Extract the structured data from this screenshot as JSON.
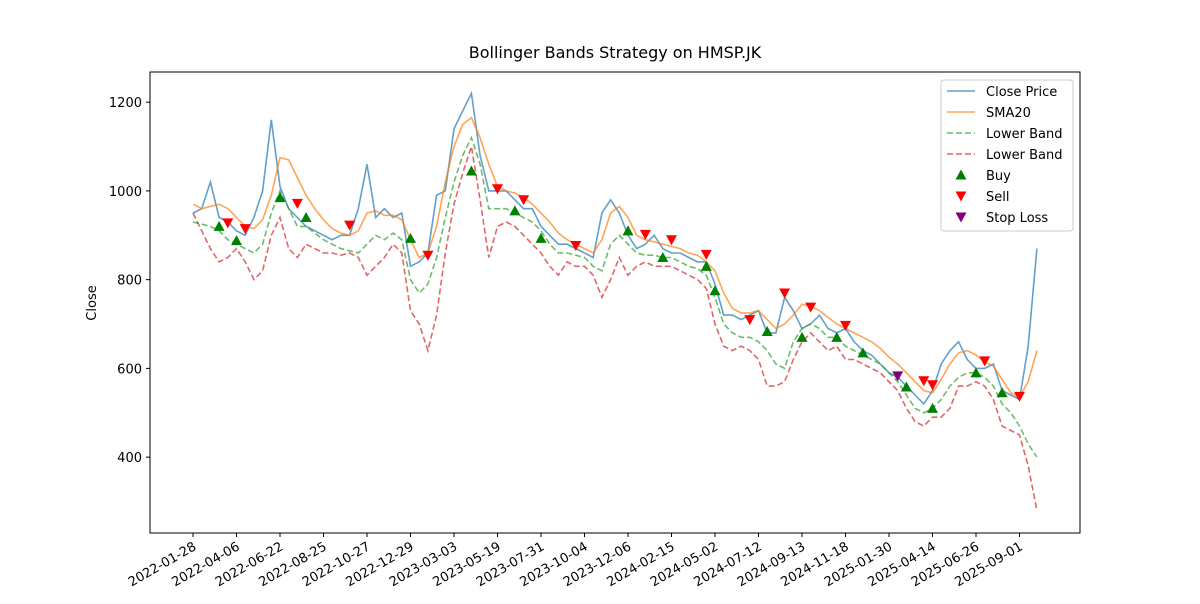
{
  "chart_data": {
    "type": "line",
    "title": "Bollinger Bands Strategy on HMSP.JK",
    "y_label": "Close",
    "categories": [
      "2022-01-28",
      null,
      null,
      null,
      null,
      "2022-04-06",
      null,
      null,
      null,
      null,
      "2022-06-22",
      null,
      null,
      null,
      null,
      "2022-08-25",
      null,
      null,
      null,
      null,
      "2022-10-27",
      null,
      null,
      null,
      null,
      "2022-12-29",
      null,
      null,
      null,
      null,
      "2023-03-03",
      null,
      null,
      null,
      null,
      "2023-05-19",
      null,
      null,
      null,
      null,
      "2023-07-31",
      null,
      null,
      null,
      null,
      "2023-10-04",
      null,
      null,
      null,
      null,
      "2023-12-06",
      null,
      null,
      null,
      null,
      "2024-02-15",
      null,
      null,
      null,
      null,
      "2024-05-02",
      null,
      null,
      null,
      null,
      "2024-07-12",
      null,
      null,
      null,
      null,
      "2024-09-13",
      null,
      null,
      null,
      null,
      "2024-11-18",
      null,
      null,
      null,
      null,
      "2025-01-30",
      null,
      null,
      null,
      null,
      "2025-04-14",
      null,
      null,
      null,
      null,
      "2025-06-26",
      null,
      null,
      null,
      null,
      "2025-09-01",
      null,
      null
    ],
    "ylim": [
      229,
      1268
    ],
    "yticks": [
      400,
      600,
      800,
      1000,
      1200
    ],
    "legend_position": "upper right",
    "series": [
      {
        "name": "Close Price",
        "color": "#1f77b4",
        "kind": "line",
        "values": [
          950,
          960,
          1020,
          940,
          930,
          910,
          900,
          940,
          1000,
          1160,
          1010,
          960,
          940,
          920,
          910,
          900,
          890,
          900,
          900,
          960,
          1060,
          940,
          960,
          940,
          950,
          830,
          840,
          860,
          990,
          1000,
          1140,
          1180,
          1220,
          1080,
          1000,
          1000,
          1000,
          980,
          960,
          960,
          920,
          900,
          880,
          880,
          870,
          860,
          850,
          950,
          980,
          950,
          900,
          870,
          880,
          900,
          870,
          860,
          860,
          850,
          840,
          840,
          790,
          720,
          720,
          710,
          720,
          730,
          680,
          680,
          760,
          730,
          690,
          700,
          720,
          690,
          680,
          690,
          660,
          640,
          630,
          610,
          590,
          580,
          560,
          540,
          520,
          550,
          610,
          640,
          660,
          620,
          600,
          600,
          610,
          550,
          540,
          530,
          650,
          870
        ]
      },
      {
        "name": "SMA20",
        "color": "#ff7f0e",
        "kind": "line",
        "values": [
          970,
          960,
          965,
          970,
          960,
          940,
          920,
          915,
          935,
          990,
          1075,
          1070,
          1030,
          990,
          960,
          935,
          915,
          905,
          900,
          910,
          950,
          955,
          945,
          945,
          935,
          890,
          850,
          860,
          920,
          1020,
          1100,
          1150,
          1165,
          1120,
          1060,
          1010,
          1000,
          995,
          985,
          970,
          950,
          930,
          905,
          890,
          880,
          870,
          860,
          890,
          950,
          965,
          940,
          900,
          890,
          885,
          880,
          875,
          870,
          860,
          855,
          840,
          820,
          770,
          735,
          725,
          725,
          730,
          710,
          690,
          700,
          720,
          745,
          740,
          730,
          715,
          700,
          690,
          680,
          670,
          660,
          645,
          625,
          610,
          590,
          570,
          550,
          545,
          575,
          610,
          635,
          640,
          630,
          615,
          605,
          575,
          545,
          535,
          570,
          640
        ]
      },
      {
        "name": "Lower Band",
        "color": "#2ca02c",
        "kind": "line",
        "dash": true,
        "values": [
          930,
          925,
          920,
          910,
          890,
          880,
          870,
          860,
          880,
          950,
          1000,
          960,
          920,
          920,
          905,
          890,
          880,
          870,
          865,
          860,
          880,
          900,
          890,
          905,
          890,
          800,
          770,
          790,
          850,
          940,
          1020,
          1080,
          1120,
          1060,
          960,
          960,
          960,
          950,
          940,
          930,
          910,
          880,
          860,
          860,
          855,
          850,
          830,
          820,
          880,
          900,
          880,
          860,
          855,
          855,
          850,
          850,
          840,
          830,
          825,
          810,
          760,
          700,
          680,
          670,
          670,
          660,
          640,
          610,
          600,
          660,
          690,
          700,
          690,
          670,
          670,
          650,
          640,
          630,
          620,
          610,
          590,
          570,
          540,
          510,
          500,
          510,
          530,
          560,
          580,
          590,
          590,
          580,
          560,
          520,
          500,
          470,
          430,
          400
        ]
      },
      {
        "name": "Lower Band",
        "color": "#d62728",
        "kind": "line",
        "dash": true,
        "values": [
          950,
          910,
          870,
          840,
          850,
          870,
          840,
          800,
          820,
          900,
          940,
          870,
          850,
          880,
          870,
          860,
          860,
          855,
          860,
          850,
          810,
          830,
          850,
          880,
          860,
          730,
          700,
          640,
          720,
          860,
          970,
          1040,
          1100,
          980,
          850,
          920,
          930,
          920,
          900,
          880,
          860,
          830,
          810,
          840,
          830,
          830,
          810,
          760,
          800,
          850,
          810,
          830,
          840,
          830,
          830,
          830,
          820,
          810,
          800,
          780,
          700,
          650,
          640,
          650,
          640,
          620,
          560,
          560,
          570,
          620,
          660,
          680,
          660,
          640,
          650,
          620,
          620,
          610,
          600,
          590,
          570,
          550,
          510,
          480,
          470,
          490,
          490,
          510,
          560,
          560,
          570,
          560,
          530,
          470,
          460,
          450,
          380,
          280
        ]
      },
      {
        "name": "Buy",
        "color": "green",
        "kind": "marker",
        "marker": "up",
        "values": [
          null,
          null,
          null,
          920,
          null,
          888,
          null,
          null,
          null,
          null,
          985,
          null,
          null,
          940,
          null,
          null,
          null,
          null,
          null,
          null,
          null,
          null,
          null,
          null,
          null,
          893,
          null,
          null,
          null,
          null,
          null,
          null,
          1045,
          null,
          null,
          null,
          null,
          955,
          null,
          null,
          893,
          null,
          null,
          null,
          null,
          null,
          null,
          null,
          null,
          null,
          910,
          null,
          null,
          null,
          850,
          null,
          null,
          null,
          null,
          830,
          775,
          null,
          null,
          null,
          null,
          null,
          683,
          null,
          null,
          null,
          670,
          null,
          null,
          null,
          670,
          null,
          null,
          635,
          null,
          null,
          null,
          null,
          558,
          null,
          null,
          510,
          null,
          null,
          null,
          null,
          590,
          null,
          null,
          545,
          null,
          null,
          null,
          null
        ]
      },
      {
        "name": "Sell",
        "color": "red",
        "kind": "marker",
        "marker": "down",
        "values": [
          null,
          null,
          null,
          null,
          928,
          null,
          915,
          null,
          null,
          null,
          null,
          null,
          972,
          null,
          null,
          null,
          null,
          null,
          923,
          null,
          null,
          null,
          null,
          null,
          null,
          null,
          null,
          855,
          null,
          null,
          null,
          null,
          null,
          null,
          null,
          1005,
          null,
          null,
          980,
          null,
          null,
          null,
          null,
          null,
          877,
          null,
          null,
          null,
          null,
          null,
          null,
          null,
          902,
          null,
          null,
          890,
          null,
          null,
          null,
          857,
          null,
          null,
          null,
          null,
          710,
          null,
          null,
          null,
          770,
          null,
          null,
          738,
          null,
          null,
          null,
          697,
          null,
          null,
          null,
          null,
          null,
          null,
          null,
          null,
          572,
          563,
          null,
          null,
          null,
          null,
          null,
          617,
          null,
          null,
          null,
          537,
          null,
          null
        ]
      },
      {
        "name": "Stop Loss",
        "color": "purple",
        "kind": "marker",
        "marker": "down",
        "values": [
          null,
          null,
          null,
          null,
          null,
          null,
          null,
          null,
          null,
          null,
          null,
          null,
          null,
          null,
          null,
          null,
          null,
          null,
          null,
          null,
          null,
          null,
          null,
          null,
          null,
          null,
          null,
          null,
          null,
          null,
          null,
          null,
          null,
          null,
          null,
          null,
          null,
          null,
          null,
          null,
          null,
          null,
          null,
          null,
          null,
          null,
          null,
          null,
          null,
          null,
          null,
          null,
          null,
          null,
          null,
          null,
          null,
          null,
          null,
          null,
          null,
          null,
          null,
          null,
          null,
          null,
          null,
          null,
          null,
          null,
          null,
          null,
          null,
          null,
          null,
          null,
          null,
          null,
          null,
          null,
          null,
          583,
          null,
          null,
          null,
          null,
          null,
          null,
          null,
          null,
          null,
          null,
          null,
          null,
          null,
          null,
          null,
          null
        ]
      }
    ]
  }
}
